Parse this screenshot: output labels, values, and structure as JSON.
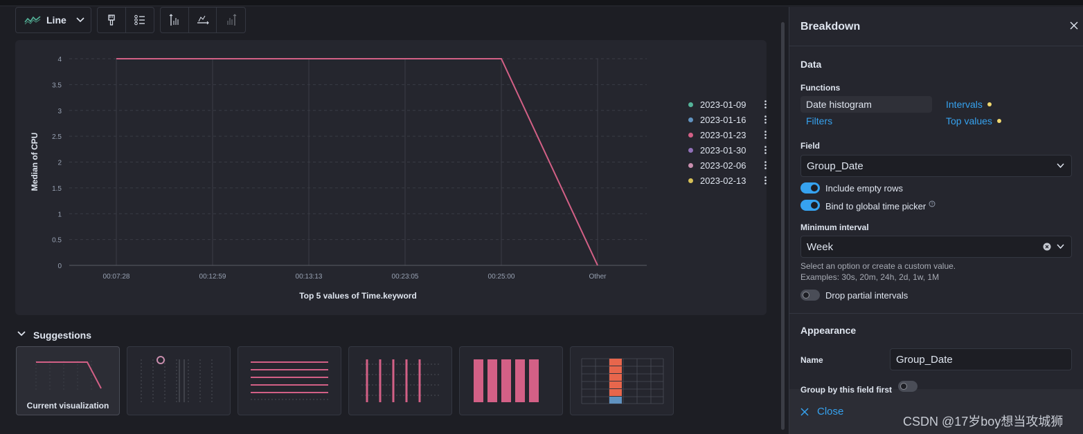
{
  "toolbar": {
    "chart_type_label": "Line",
    "chart_type_icon": "line-chart-icon",
    "buttons": [
      "paintbrush-icon",
      "legend-icon",
      "left-axis-icon",
      "bottom-axis-icon",
      "right-axis-icon"
    ]
  },
  "chart_data": {
    "type": "line",
    "x": [
      "00:07:28",
      "00:12:59",
      "00:13:13",
      "00:23:05",
      "00:25:00",
      "Other"
    ],
    "series": [
      {
        "name": "2023-01-23",
        "values": [
          4,
          4,
          4,
          4,
          4,
          0
        ],
        "color": "#d36086"
      }
    ],
    "ylabel": "Median of CPU",
    "xlabel": "Top 5 values of Time.keyword",
    "yticks": [
      "0",
      "0.5",
      "1",
      "1.5",
      "2",
      "2.5",
      "3",
      "3.5",
      "4"
    ],
    "ylim": [
      0,
      4
    ],
    "grid": true,
    "legend_position": "top-right",
    "legend": [
      {
        "label": "2023-01-09",
        "color": "#54b399"
      },
      {
        "label": "2023-01-16",
        "color": "#6092c0"
      },
      {
        "label": "2023-01-23",
        "color": "#d36086"
      },
      {
        "label": "2023-01-30",
        "color": "#9170b8"
      },
      {
        "label": "2023-02-06",
        "color": "#ca8eae"
      },
      {
        "label": "2023-02-13",
        "color": "#d6bf57"
      }
    ]
  },
  "suggestions": {
    "title": "Suggestions",
    "current_label": "Current visualization"
  },
  "flyout": {
    "title": "Breakdown",
    "data_title": "Data",
    "functions_label": "Functions",
    "functions": {
      "date_histogram": "Date histogram",
      "intervals": "Intervals",
      "filters": "Filters",
      "top_values": "Top values"
    },
    "field_label": "Field",
    "field_value": "Group_Date",
    "include_empty_rows": "Include empty rows",
    "bind_global_time": "Bind to global time picker",
    "min_interval_label": "Minimum interval",
    "min_interval_value": "Week",
    "help_line1": "Select an option or create a custom value.",
    "help_line2": "Examples: 30s, 20m, 24h, 2d, 1w, 1M",
    "drop_partial": "Drop partial intervals",
    "appearance_title": "Appearance",
    "name_label": "Name",
    "name_value": "Group_Date",
    "group_first": "Group by this field first",
    "close_label": "Close"
  },
  "watermark": "CSDN @17岁boy想当攻城狮",
  "colors": {
    "accent": "#36a2ef",
    "line": "#d36086",
    "warning_dot": "#f1d86f"
  }
}
